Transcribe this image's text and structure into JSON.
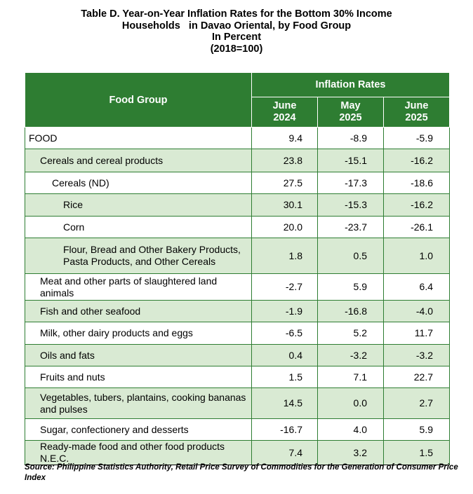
{
  "title": {
    "line1": "Table D. Year-on-Year Inflation Rates for the Bottom 30% Income",
    "line2": "Households   in Davao Oriental, by Food Group",
    "line3": "In Percent",
    "line4": "(2018=100)"
  },
  "table": {
    "col_food_group": "Food Group",
    "col_group_header": "Inflation Rates",
    "months": [
      {
        "m": "June",
        "y": "2024"
      },
      {
        "m": "May",
        "y": "2025"
      },
      {
        "m": "June",
        "y": "2025"
      }
    ],
    "rows": [
      {
        "label": "FOOD",
        "level": 0,
        "values": [
          "9.4",
          "-8.9",
          "-5.9"
        ]
      },
      {
        "label": "Cereals and cereal products",
        "level": 1,
        "values": [
          "23.8",
          "-15.1",
          "-16.2"
        ]
      },
      {
        "label": "Cereals (ND)",
        "level": 2,
        "values": [
          "27.5",
          "-17.3",
          "-18.6"
        ]
      },
      {
        "label": "Rice",
        "level": 3,
        "values": [
          "30.1",
          "-15.3",
          "-16.2"
        ]
      },
      {
        "label": "Corn",
        "level": 3,
        "values": [
          "20.0",
          "-23.7",
          "-26.1"
        ]
      },
      {
        "label": "Flour, Bread and Other Bakery Products, Pasta Products, and Other Cereals",
        "level": 3,
        "values": [
          "1.8",
          "0.5",
          "1.0"
        ]
      },
      {
        "label": "Meat and other parts of slaughtered land animals",
        "level": 1,
        "values": [
          "-2.7",
          "5.9",
          "6.4"
        ]
      },
      {
        "label": "Fish and other seafood",
        "level": 1,
        "values": [
          "-1.9",
          "-16.8",
          "-4.0"
        ]
      },
      {
        "label": "Milk, other dairy products and eggs",
        "level": 1,
        "values": [
          "-6.5",
          "5.2",
          "11.7"
        ]
      },
      {
        "label": "Oils and fats",
        "level": 1,
        "values": [
          "0.4",
          "-3.2",
          "-3.2"
        ]
      },
      {
        "label": "Fruits and nuts",
        "level": 1,
        "values": [
          "1.5",
          "7.1",
          "22.7"
        ]
      },
      {
        "label": "Vegetables, tubers, plantains, cooking bananas and pulses",
        "level": 1,
        "values": [
          "14.5",
          "0.0",
          "2.7"
        ]
      },
      {
        "label": "Sugar, confectionery and desserts",
        "level": 1,
        "values": [
          "-16.7",
          "4.0",
          "5.9"
        ]
      },
      {
        "label": "Ready-made food and other food products N.E.C.",
        "level": 1,
        "values": [
          "7.4",
          "3.2",
          "1.5"
        ]
      }
    ]
  },
  "source": "Source: Philippine Statistics Authority, Retail Price Survey of Commodities for the Generation of Consumer Price Index"
}
